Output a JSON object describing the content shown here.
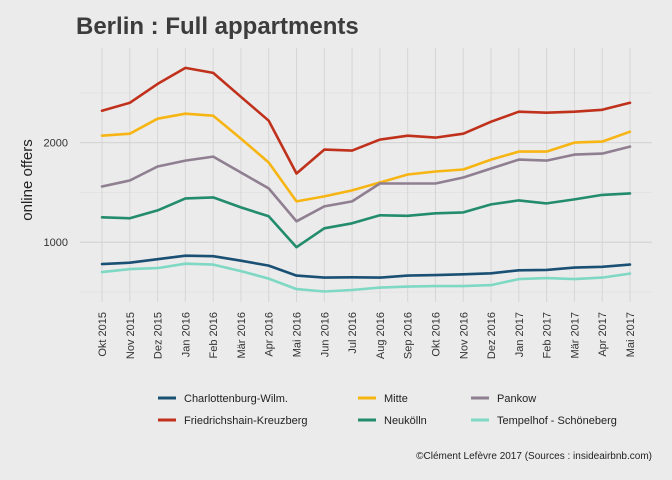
{
  "chart_data": {
    "type": "line",
    "title": "Berlin : Full appartments",
    "xlabel": "",
    "ylabel": "online offers",
    "ylim": [
      400,
      2950
    ],
    "yticks": [
      1000,
      2000
    ],
    "grid": true,
    "legend_position": "bottom",
    "caption": "©Clément Lefèvre 2017 (Sources : insideairbnb.com)",
    "x": [
      "Okt 2015",
      "Nov 2015",
      "Dez 2015",
      "Jan 2016",
      "Feb 2016",
      "Mär 2016",
      "Apr 2016",
      "Mai 2016",
      "Jun 2016",
      "Jul 2016",
      "Aug 2016",
      "Sep 2016",
      "Okt 2016",
      "Nov 2016",
      "Dez 2016",
      "Jan 2017",
      "Feb 2017",
      "Mär 2017",
      "Apr 2017",
      "Mai 2017"
    ],
    "series": [
      {
        "name": "Charlottenburg-Wilm.",
        "color": "#1a5073",
        "values": [
          780,
          795,
          830,
          865,
          860,
          815,
          765,
          665,
          645,
          648,
          645,
          665,
          670,
          678,
          688,
          718,
          722,
          745,
          753,
          775
        ]
      },
      {
        "name": "Friedrichshain-Kreuzberg",
        "color": "#c0311c",
        "values": [
          2320,
          2400,
          2590,
          2750,
          2700,
          2460,
          2220,
          1690,
          1930,
          1920,
          2030,
          2070,
          2050,
          2090,
          2210,
          2310,
          2300,
          2310,
          2330,
          2400
        ]
      },
      {
        "name": "Mitte",
        "color": "#f7b514",
        "values": [
          2070,
          2090,
          2240,
          2290,
          2270,
          2040,
          1800,
          1410,
          1460,
          1520,
          1600,
          1680,
          1710,
          1730,
          1830,
          1910,
          1910,
          2000,
          2010,
          2110
        ]
      },
      {
        "name": "Neukölln",
        "color": "#238c6c",
        "values": [
          1250,
          1240,
          1320,
          1440,
          1450,
          1350,
          1260,
          950,
          1140,
          1190,
          1270,
          1265,
          1290,
          1300,
          1380,
          1420,
          1390,
          1430,
          1475,
          1490
        ]
      },
      {
        "name": "Pankow",
        "color": "#8f7f91",
        "values": [
          1560,
          1620,
          1760,
          1820,
          1860,
          1700,
          1540,
          1210,
          1360,
          1410,
          1590,
          1590,
          1590,
          1650,
          1740,
          1830,
          1820,
          1880,
          1890,
          1960
        ]
      },
      {
        "name": "Tempelhof - Schöneberg",
        "color": "#7ed8c4",
        "values": [
          700,
          730,
          740,
          785,
          775,
          710,
          635,
          530,
          505,
          520,
          545,
          555,
          560,
          560,
          570,
          630,
          640,
          630,
          645,
          685
        ]
      }
    ]
  }
}
